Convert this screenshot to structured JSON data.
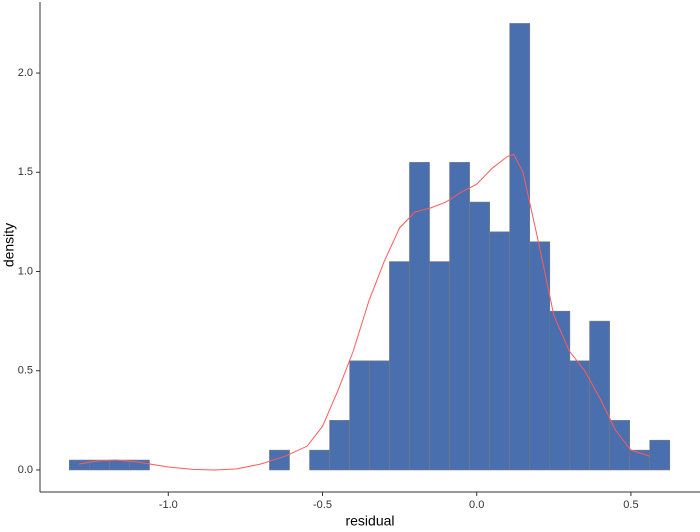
{
  "chart_data": {
    "type": "histogram",
    "x_label": "residual",
    "y_label": "density",
    "bins": [
      -1.321,
      -1.256,
      -1.191,
      -1.126,
      -1.061,
      -0.997,
      -0.932,
      -0.867,
      -0.802,
      -0.737,
      -0.672,
      -0.607,
      -0.542,
      -0.477,
      -0.412,
      -0.348,
      -0.283,
      -0.218,
      -0.153,
      -0.088,
      -0.023,
      0.042,
      0.107,
      0.172,
      0.237,
      0.302,
      0.366,
      0.431,
      0.496,
      0.561,
      0.626
    ],
    "values": [
      0.05,
      0.05,
      0.05,
      0.05,
      0,
      0,
      0,
      0,
      0,
      0,
      0.1,
      0,
      0.1,
      0.25,
      0.55,
      0.55,
      1.05,
      1.55,
      1.05,
      1.55,
      1.35,
      1.2,
      2.25,
      1.15,
      0.8,
      0.55,
      0.75,
      0.25,
      0.1,
      0.15
    ],
    "color": "#4a6fae",
    "edge_color": "#7a7a7a",
    "curve": {
      "color": "#ff5a5a",
      "x": [
        -1.29,
        -1.23,
        -1.17,
        -1.1,
        -1.0,
        -0.92,
        -0.85,
        -0.78,
        -0.7,
        -0.62,
        -0.55,
        -0.5,
        -0.45,
        -0.4,
        -0.35,
        -0.3,
        -0.25,
        -0.2,
        -0.15,
        -0.1,
        -0.05,
        0.0,
        0.05,
        0.1,
        0.12,
        0.15,
        0.2,
        0.25,
        0.3,
        0.35,
        0.4,
        0.45,
        0.5,
        0.56
      ],
      "y": [
        0.03,
        0.045,
        0.05,
        0.04,
        0.015,
        0.003,
        0.0,
        0.005,
        0.03,
        0.07,
        0.12,
        0.22,
        0.4,
        0.6,
        0.85,
        1.05,
        1.22,
        1.3,
        1.32,
        1.35,
        1.4,
        1.44,
        1.52,
        1.58,
        1.59,
        1.5,
        1.15,
        0.78,
        0.6,
        0.5,
        0.36,
        0.2,
        0.1,
        0.07
      ]
    },
    "xlim": [
      -1.416,
      0.724
    ],
    "ylim": [
      -0.111,
      2.358
    ],
    "xticks": [
      {
        "value": -1.0,
        "label": "-1.0"
      },
      {
        "value": -0.5,
        "label": "-0.5"
      },
      {
        "value": 0.0,
        "label": "0.0"
      },
      {
        "value": 0.5,
        "label": "0.5"
      }
    ],
    "yticks": [
      {
        "value": 0.0,
        "label": "0.0"
      },
      {
        "value": 0.5,
        "label": "0.5"
      },
      {
        "value": 1.0,
        "label": "1.0"
      },
      {
        "value": 1.5,
        "label": "1.5"
      },
      {
        "value": 2.0,
        "label": "2.0"
      }
    ]
  }
}
